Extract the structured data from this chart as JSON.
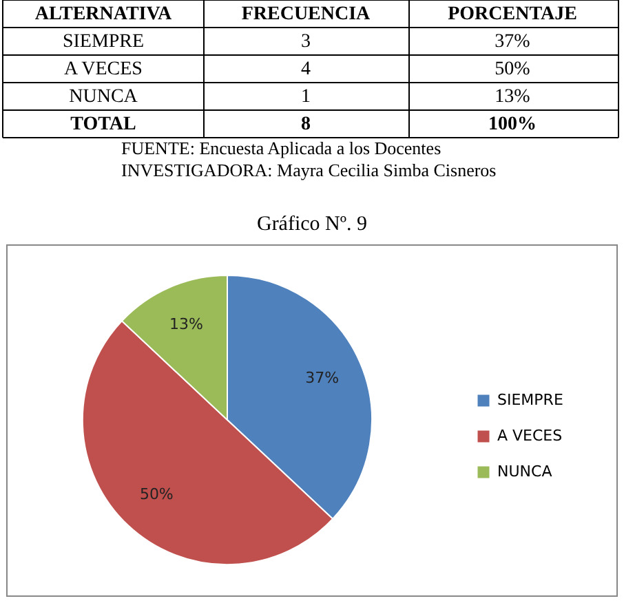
{
  "chart_data": {
    "type": "pie",
    "title": "Gráfico Nº. 9",
    "categories": [
      "SIEMPRE",
      "A VECES",
      "NUNCA"
    ],
    "values": [
      37,
      50,
      13
    ],
    "colors": [
      "#4f81bd",
      "#c0504d",
      "#9bbb59"
    ],
    "value_labels": [
      "37%",
      "50%",
      "13%"
    ],
    "legend": "right",
    "annotations": [
      "ALTERNATIVA",
      "FRECUENCIA",
      "PORCENTAJE",
      "SIEMPRE",
      "3",
      "37%",
      "A VECES",
      "4",
      "50%",
      "NUNCA",
      "1",
      "13%",
      "TOTAL",
      "8",
      "100%",
      "FUENTE: Encuesta Aplicada a los Docentes",
      "INVESTIGADORA: Mayra Cecilia Simba Cisneros"
    ]
  }
}
